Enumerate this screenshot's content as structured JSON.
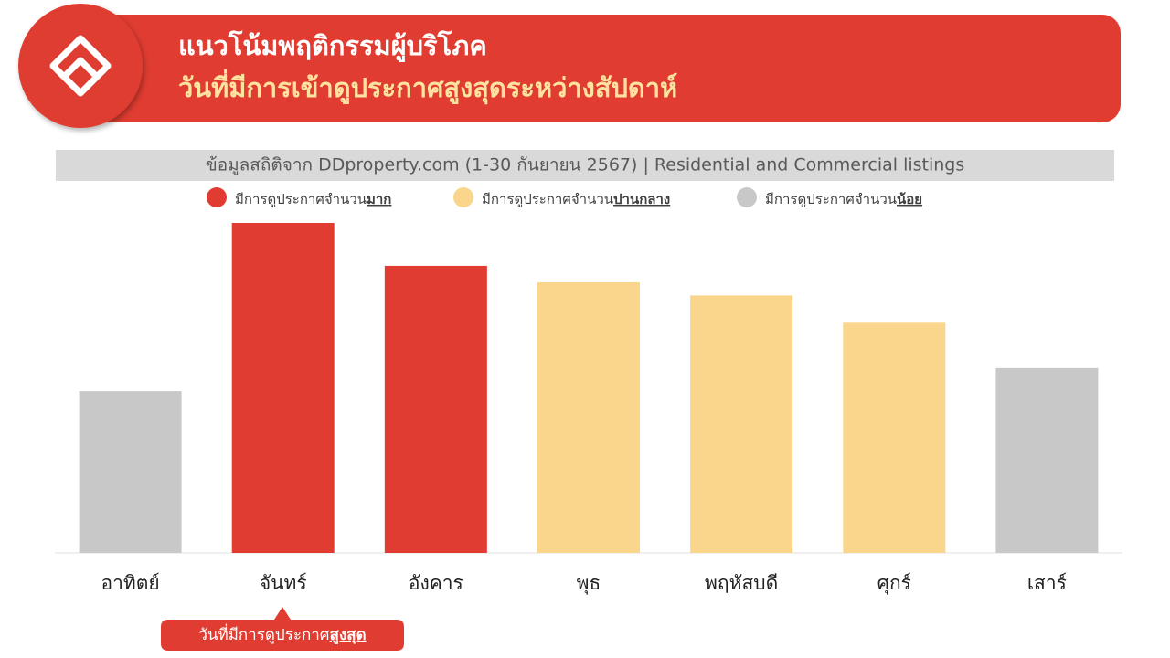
{
  "header": {
    "title": "แนวโน้มพฤติกรรมผู้บริโภค",
    "subtitle": "วันที่มีการเข้าดูประกาศสูงสุดระหว่างสัปดาห์"
  },
  "source": "ข้อมูลสถิติจาก DDproperty.com (1-30 กันยายน 2567) | Residential and Commercial listings",
  "legend": [
    {
      "text": "มีการดูประกาศจำนวน",
      "emphasis": "มาก",
      "color": "#e03c31"
    },
    {
      "text": "มีการดูประกาศจำนวน",
      "emphasis": "ปานกลาง",
      "color": "#fad58c"
    },
    {
      "text": "มีการดูประกาศจำนวน",
      "emphasis": "น้อย",
      "color": "#c8c8c8"
    }
  ],
  "chart_data": {
    "type": "bar",
    "categories": [
      "อาทิตย์",
      "จันทร์",
      "อังคาร",
      "พุธ",
      "พฤหัสบดี",
      "ศุกร์",
      "เสาร์"
    ],
    "values": [
      49,
      100,
      87,
      82,
      78,
      70,
      56
    ],
    "colors": [
      "#c8c8c8",
      "#e03c31",
      "#e03c31",
      "#fad58c",
      "#fad58c",
      "#fad58c",
      "#c8c8c8"
    ]
  },
  "callout": {
    "text": "วันที่มีการดูประกาศ",
    "emphasis": "สูงสุด"
  }
}
